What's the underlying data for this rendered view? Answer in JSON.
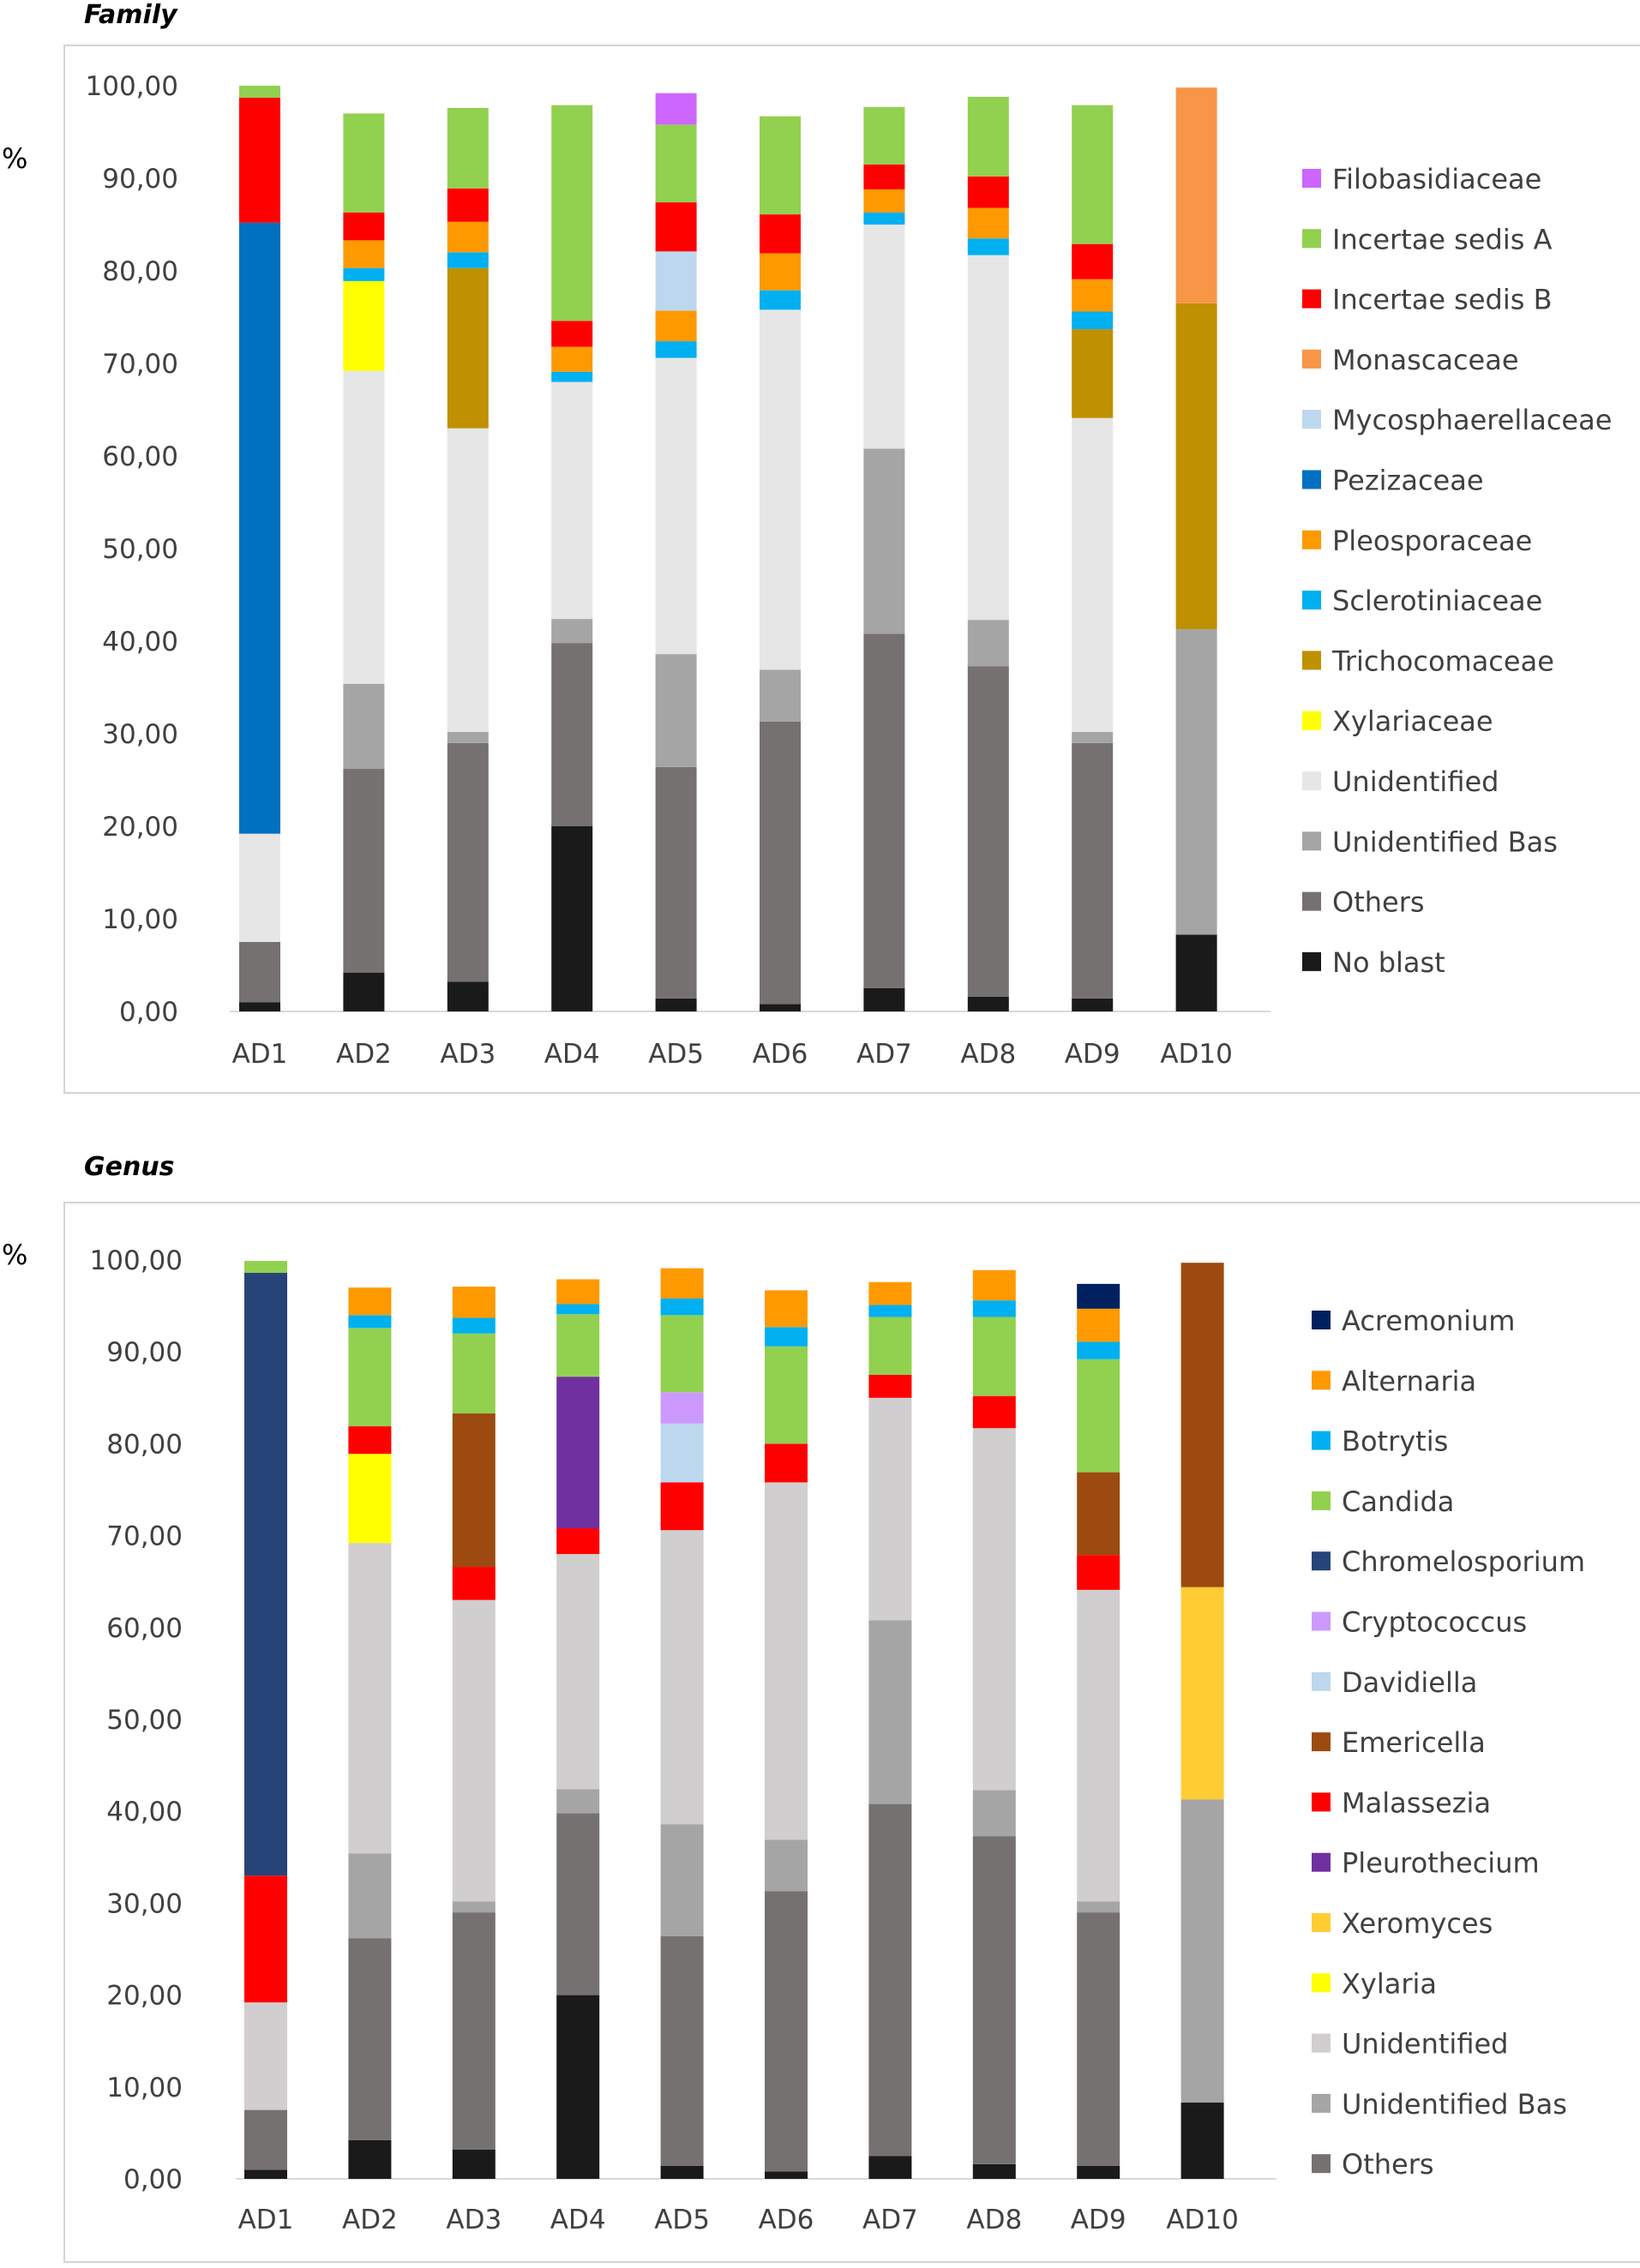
{
  "chart_data": [
    {
      "type": "bar",
      "stacked": true,
      "title": "Family",
      "ylabel": "%",
      "ylim": [
        0,
        100
      ],
      "y_ticks": [
        "0,00",
        "10,00",
        "20,00",
        "30,00",
        "40,00",
        "50,00",
        "60,00",
        "70,00",
        "80,00",
        "90,00",
        "100,00"
      ],
      "categories": [
        "AD1",
        "AD2",
        "AD3",
        "AD4",
        "AD5",
        "AD6",
        "AD7",
        "AD8",
        "AD9",
        "AD10"
      ],
      "series": [
        {
          "name": "No blast",
          "color": "#1a1a1a",
          "values": [
            1.0,
            4.2,
            3.2,
            20.0,
            1.4,
            0.8,
            2.5,
            1.6,
            1.4,
            8.3
          ]
        },
        {
          "name": "Others",
          "color": "#767171",
          "values": [
            6.5,
            22.0,
            25.8,
            19.8,
            25.0,
            30.5,
            38.3,
            35.7,
            27.6,
            0
          ]
        },
        {
          "name": "Unidentified Bas",
          "color": "#a5a5a5",
          "values": [
            0,
            9.2,
            1.2,
            2.6,
            12.2,
            5.6,
            20.0,
            5.0,
            1.2,
            33.0
          ]
        },
        {
          "name": "Unidentified",
          "color": "#e6e6e6",
          "values": [
            11.7,
            33.8,
            32.8,
            25.6,
            32.0,
            38.9,
            24.2,
            39.4,
            33.9,
            0
          ]
        },
        {
          "name": "Xylariaceae",
          "color": "#ffff00",
          "values": [
            0,
            9.7,
            0,
            0,
            0,
            0,
            0,
            0,
            0,
            0
          ]
        },
        {
          "name": "Trichocomaceae",
          "color": "#bf9000",
          "values": [
            0,
            0,
            17.3,
            0,
            0,
            0,
            0,
            0,
            9.6,
            35.2
          ]
        },
        {
          "name": "Sclerotiniaceae",
          "color": "#00b0f0",
          "values": [
            0,
            1.4,
            1.7,
            1.1,
            1.8,
            2.1,
            1.3,
            1.8,
            1.9,
            0
          ]
        },
        {
          "name": "Pleosporaceae",
          "color": "#ff9900",
          "values": [
            0,
            3.0,
            3.3,
            2.7,
            3.3,
            4.0,
            2.5,
            3.3,
            3.5,
            0
          ]
        },
        {
          "name": "Pezizaceae",
          "color": "#0070c0",
          "values": [
            66.0,
            0,
            0,
            0,
            0,
            0,
            0,
            0,
            0,
            0
          ]
        },
        {
          "name": "Mycosphaerellaceae",
          "color": "#bdd7ee",
          "values": [
            0,
            0,
            0,
            0,
            6.4,
            0,
            0,
            0,
            0,
            0
          ]
        },
        {
          "name": "Monascaceae",
          "color": "#f79646",
          "values": [
            0,
            0,
            0,
            0,
            0,
            0,
            0,
            0,
            0,
            23.3
          ]
        },
        {
          "name": "Incertae sedis B",
          "color": "#ff0000",
          "values": [
            13.5,
            3.0,
            3.6,
            2.8,
            5.3,
            4.2,
            2.7,
            3.4,
            3.8,
            0
          ]
        },
        {
          "name": "Incertae sedis A",
          "color": "#92d050",
          "values": [
            1.3,
            10.7,
            8.7,
            23.3,
            8.4,
            10.6,
            6.2,
            8.6,
            15.0,
            0
          ]
        },
        {
          "name": "Filobasidiaceae",
          "color": "#cc66ff",
          "values": [
            0,
            0,
            0,
            0,
            3.4,
            0,
            0,
            0,
            0,
            0
          ]
        }
      ],
      "legend": [
        "Filobasidiaceae",
        "Incertae sedis A",
        "Incertae sedis B",
        "Monascaceae",
        "Mycosphaerellaceae",
        "Pezizaceae",
        "Pleosporaceae",
        "Sclerotiniaceae",
        "Trichocomaceae",
        "Xylariaceae",
        "Unidentified",
        "Unidentified Bas",
        "Others",
        "No blast"
      ]
    },
    {
      "type": "bar",
      "stacked": true,
      "title": "Genus",
      "ylabel": "%",
      "ylim": [
        0,
        100
      ],
      "y_ticks": [
        "0,00",
        "10,00",
        "20,00",
        "30,00",
        "40,00",
        "50,00",
        "60,00",
        "70,00",
        "80,00",
        "90,00",
        "100,00"
      ],
      "categories": [
        "AD1",
        "AD2",
        "AD3",
        "AD4",
        "AD5",
        "AD6",
        "AD7",
        "AD8",
        "AD9",
        "AD10"
      ],
      "series": [
        {
          "name": "No blast",
          "color": "#1a1a1a",
          "values": [
            1.0,
            4.2,
            3.2,
            20.0,
            1.4,
            0.8,
            2.5,
            1.6,
            1.4,
            8.3
          ]
        },
        {
          "name": "Others",
          "color": "#767171",
          "values": [
            6.5,
            22.0,
            25.8,
            19.8,
            25.0,
            30.5,
            38.3,
            35.7,
            27.6,
            0
          ]
        },
        {
          "name": "Unidentified Bas",
          "color": "#a5a5a5",
          "values": [
            0,
            9.2,
            1.2,
            2.6,
            12.2,
            5.6,
            20.0,
            5.0,
            1.2,
            33.0
          ]
        },
        {
          "name": "Unidentified",
          "color": "#d0cece",
          "values": [
            11.7,
            33.8,
            32.8,
            25.6,
            32.0,
            38.9,
            24.2,
            39.4,
            33.9,
            0
          ]
        },
        {
          "name": "Xylaria",
          "color": "#ffff00",
          "values": [
            0,
            9.7,
            0,
            0,
            0,
            0,
            0,
            0,
            0,
            0
          ]
        },
        {
          "name": "Xeromyces",
          "color": "#ffcc33",
          "values": [
            0,
            0,
            0,
            0,
            0,
            0,
            0,
            0,
            0,
            23.1
          ]
        },
        {
          "name": "Malassezia",
          "color": "#ff0000",
          "values": [
            13.8,
            3.0,
            3.6,
            2.8,
            5.2,
            4.2,
            2.5,
            3.5,
            3.8,
            0
          ]
        },
        {
          "name": "Pleurothecium",
          "color": "#7030a0",
          "values": [
            0,
            0,
            0,
            16.5,
            0,
            0,
            0,
            0,
            0,
            0
          ]
        },
        {
          "name": "Emericella",
          "color": "#9c4a0f",
          "values": [
            0,
            0,
            16.7,
            0,
            0,
            0,
            0,
            0,
            9.0,
            35.3
          ]
        },
        {
          "name": "Davidiella",
          "color": "#bdd7ee",
          "values": [
            0,
            0,
            0,
            0,
            6.4,
            0,
            0,
            0,
            0,
            0
          ]
        },
        {
          "name": "Cryptococcus",
          "color": "#cc99ff",
          "values": [
            0,
            0,
            0,
            0,
            3.4,
            0,
            0,
            0,
            0,
            0
          ]
        },
        {
          "name": "Chromelosporium",
          "color": "#264478",
          "values": [
            65.6,
            0,
            0,
            0,
            0,
            0,
            0,
            0,
            0,
            0
          ]
        },
        {
          "name": "Candida",
          "color": "#92d050",
          "values": [
            1.3,
            10.7,
            8.7,
            6.8,
            8.4,
            10.6,
            6.3,
            8.6,
            12.3,
            0
          ]
        },
        {
          "name": "Botrytis",
          "color": "#00b0f0",
          "values": [
            0,
            1.4,
            1.7,
            1.1,
            1.8,
            2.1,
            1.3,
            1.8,
            1.9,
            0
          ]
        },
        {
          "name": "Alternaria",
          "color": "#ff9900",
          "values": [
            0,
            3.0,
            3.4,
            2.7,
            3.3,
            4.0,
            2.5,
            3.3,
            3.6,
            0
          ]
        },
        {
          "name": "Acremonium",
          "color": "#002060",
          "values": [
            0,
            0,
            0,
            0,
            0,
            0,
            0,
            0,
            2.7,
            0
          ]
        }
      ],
      "legend": [
        "Acremonium",
        "Alternaria",
        "Botrytis",
        "Candida",
        "Chromelosporium",
        "Cryptococcus",
        "Davidiella",
        "Emericella",
        "Malassezia",
        "Pleurothecium",
        "Xeromyces",
        "Xylaria",
        "Unidentified",
        "Unidentified Bas",
        "Others"
      ]
    }
  ]
}
